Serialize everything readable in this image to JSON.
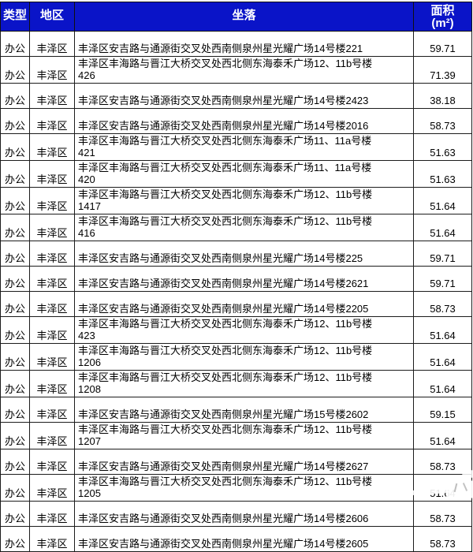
{
  "chart_data": {
    "type": "table",
    "title": "",
    "columns": [
      "类型",
      "地区",
      "坐落",
      "面积(m²)"
    ],
    "rows": [
      [
        "办公",
        "丰泽区",
        "丰泽区安吉路与通源街交叉处西南侧泉州星光耀广场14号楼221",
        59.71
      ],
      [
        "办公",
        "丰泽区",
        "丰泽区丰海路与晋江大桥交叉处西北侧东海泰禾广场12、11b号楼426",
        71.39
      ],
      [
        "办公",
        "丰泽区",
        "丰泽区安吉路与通源街交叉处西南侧泉州星光耀广场14号楼2423",
        38.18
      ],
      [
        "办公",
        "丰泽区",
        "丰泽区安吉路与通源街交叉处西南侧泉州星光耀广场14号楼2016",
        58.73
      ],
      [
        "办公",
        "丰泽区",
        "丰泽区丰海路与晋江大桥交叉处西北侧东海泰禾广场11、11a号楼421",
        51.63
      ],
      [
        "办公",
        "丰泽区",
        "丰泽区丰海路与晋江大桥交叉处西北侧东海泰禾广场11、11a号楼420",
        51.63
      ],
      [
        "办公",
        "丰泽区",
        "丰泽区丰海路与晋江大桥交叉处西北侧东海泰禾广场12、11b号楼1417",
        51.64
      ],
      [
        "办公",
        "丰泽区",
        "丰泽区丰海路与晋江大桥交叉处西北侧东海泰禾广场12、11b号楼416",
        51.64
      ],
      [
        "办公",
        "丰泽区",
        "丰泽区安吉路与通源街交叉处西南侧泉州星光耀广场14号楼225",
        59.71
      ],
      [
        "办公",
        "丰泽区",
        "丰泽区安吉路与通源街交叉处西南侧泉州星光耀广场14号楼2621",
        59.71
      ],
      [
        "办公",
        "丰泽区",
        "丰泽区安吉路与通源街交叉处西南侧泉州星光耀广场14号楼2205",
        58.73
      ],
      [
        "办公",
        "丰泽区",
        "丰泽区丰海路与晋江大桥交叉处西北侧东海泰禾广场12、11b号楼423",
        51.64
      ],
      [
        "办公",
        "丰泽区",
        "丰泽区丰海路与晋江大桥交叉处西北侧东海泰禾广场12、11b号楼1206",
        51.64
      ],
      [
        "办公",
        "丰泽区",
        "丰泽区丰海路与晋江大桥交叉处西北侧东海泰禾广场12、11b号楼1208",
        51.64
      ],
      [
        "办公",
        "丰泽区",
        "丰泽区安吉路与通源街交叉处西南侧泉州星光耀广场15号楼2602",
        59.15
      ],
      [
        "办公",
        "丰泽区",
        "丰泽区丰海路与晋江大桥交叉处西北侧东海泰禾广场12、11b号楼1207",
        51.64
      ],
      [
        "办公",
        "丰泽区",
        "丰泽区安吉路与通源街交叉处西南侧泉州星光耀广场14号楼2627",
        58.73
      ],
      [
        "办公",
        "丰泽区",
        "丰泽区丰海路与晋江大桥交叉处西北侧东海泰禾广场12、11b号楼1205",
        51.64
      ],
      [
        "办公",
        "丰泽区",
        "丰泽区安吉路与通源街交叉处西南侧泉州星光耀广场14号楼2606",
        58.73
      ],
      [
        "办公",
        "丰泽区",
        "丰泽区安吉路与通源街交叉处西南侧泉州星光耀广场14号楼2605",
        58.73
      ]
    ],
    "legend_position": "none",
    "grid": true
  },
  "table": {
    "header": {
      "type_label": "类型",
      "region_label": "地区",
      "location_label": "坐落",
      "area_label": "面积",
      "area_unit": "(m²)"
    },
    "rows": [
      {
        "type": "办公",
        "region": "丰泽区",
        "address": "丰泽区安吉路与通源街交叉处西南侧泉州星光耀广场14号楼221",
        "area": "59.71"
      },
      {
        "type": "办公",
        "region": "丰泽区",
        "address": "丰泽区丰海路与晋江大桥交叉处西北侧东海泰禾广场12、11b号楼\n426",
        "area": "71.39"
      },
      {
        "type": "办公",
        "region": "丰泽区",
        "address": "丰泽区安吉路与通源街交叉处西南侧泉州星光耀广场14号楼2423",
        "area": "38.18"
      },
      {
        "type": "办公",
        "region": "丰泽区",
        "address": "丰泽区安吉路与通源街交叉处西南侧泉州星光耀广场14号楼2016",
        "area": "58.73"
      },
      {
        "type": "办公",
        "region": "丰泽区",
        "address": "丰泽区丰海路与晋江大桥交叉处西北侧东海泰禾广场11、11a号楼\n421",
        "area": "51.63"
      },
      {
        "type": "办公",
        "region": "丰泽区",
        "address": "丰泽区丰海路与晋江大桥交叉处西北侧东海泰禾广场11、11a号楼\n420",
        "area": "51.63"
      },
      {
        "type": "办公",
        "region": "丰泽区",
        "address": "丰泽区丰海路与晋江大桥交叉处西北侧东海泰禾广场12、11b号楼\n1417",
        "area": "51.64"
      },
      {
        "type": "办公",
        "region": "丰泽区",
        "address": "丰泽区丰海路与晋江大桥交叉处西北侧东海泰禾广场12、11b号楼\n416",
        "area": "51.64"
      },
      {
        "type": "办公",
        "region": "丰泽区",
        "address": "丰泽区安吉路与通源街交叉处西南侧泉州星光耀广场14号楼225",
        "area": "59.71"
      },
      {
        "type": "办公",
        "region": "丰泽区",
        "address": "丰泽区安吉路与通源街交叉处西南侧泉州星光耀广场14号楼2621",
        "area": "59.71"
      },
      {
        "type": "办公",
        "region": "丰泽区",
        "address": "丰泽区安吉路与通源街交叉处西南侧泉州星光耀广场14号楼2205",
        "area": "58.73"
      },
      {
        "type": "办公",
        "region": "丰泽区",
        "address": "丰泽区丰海路与晋江大桥交叉处西北侧东海泰禾广场12、11b号楼\n423",
        "area": "51.64"
      },
      {
        "type": "办公",
        "region": "丰泽区",
        "address": "丰泽区丰海路与晋江大桥交叉处西北侧东海泰禾广场12、11b号楼\n1206",
        "area": "51.64"
      },
      {
        "type": "办公",
        "region": "丰泽区",
        "address": "丰泽区丰海路与晋江大桥交叉处西北侧东海泰禾广场12、11b号楼\n1208",
        "area": "51.64"
      },
      {
        "type": "办公",
        "region": "丰泽区",
        "address": "丰泽区安吉路与通源街交叉处西南侧泉州星光耀广场15号楼2602",
        "area": "59.15"
      },
      {
        "type": "办公",
        "region": "丰泽区",
        "address": "丰泽区丰海路与晋江大桥交叉处西北侧东海泰禾广场12、11b号楼\n1207",
        "area": "51.64"
      },
      {
        "type": "办公",
        "region": "丰泽区",
        "address": "丰泽区安吉路与通源街交叉处西南侧泉州星光耀广场14号楼2627",
        "area": "58.73"
      },
      {
        "type": "办公",
        "region": "丰泽区",
        "address": "丰泽区丰海路与晋江大桥交叉处西北侧东海泰禾广场12、11b号楼\n1205",
        "area": "51.64"
      },
      {
        "type": "办公",
        "region": "丰泽区",
        "address": "丰泽区安吉路与通源街交叉处西南侧泉州星光耀广场14号楼2606",
        "area": "58.73"
      },
      {
        "type": "办公",
        "region": "丰泽区",
        "address": "丰泽区安吉路与通源街交叉处西南侧泉州星光耀广场14号楼2605",
        "area": "58.73"
      }
    ]
  },
  "colors": {
    "header_bg": "#0a14c8",
    "header_text": "#ffffff",
    "grid_line": "#1c1c1c",
    "row_bg": "#ffffff",
    "body_text": "#000000"
  }
}
